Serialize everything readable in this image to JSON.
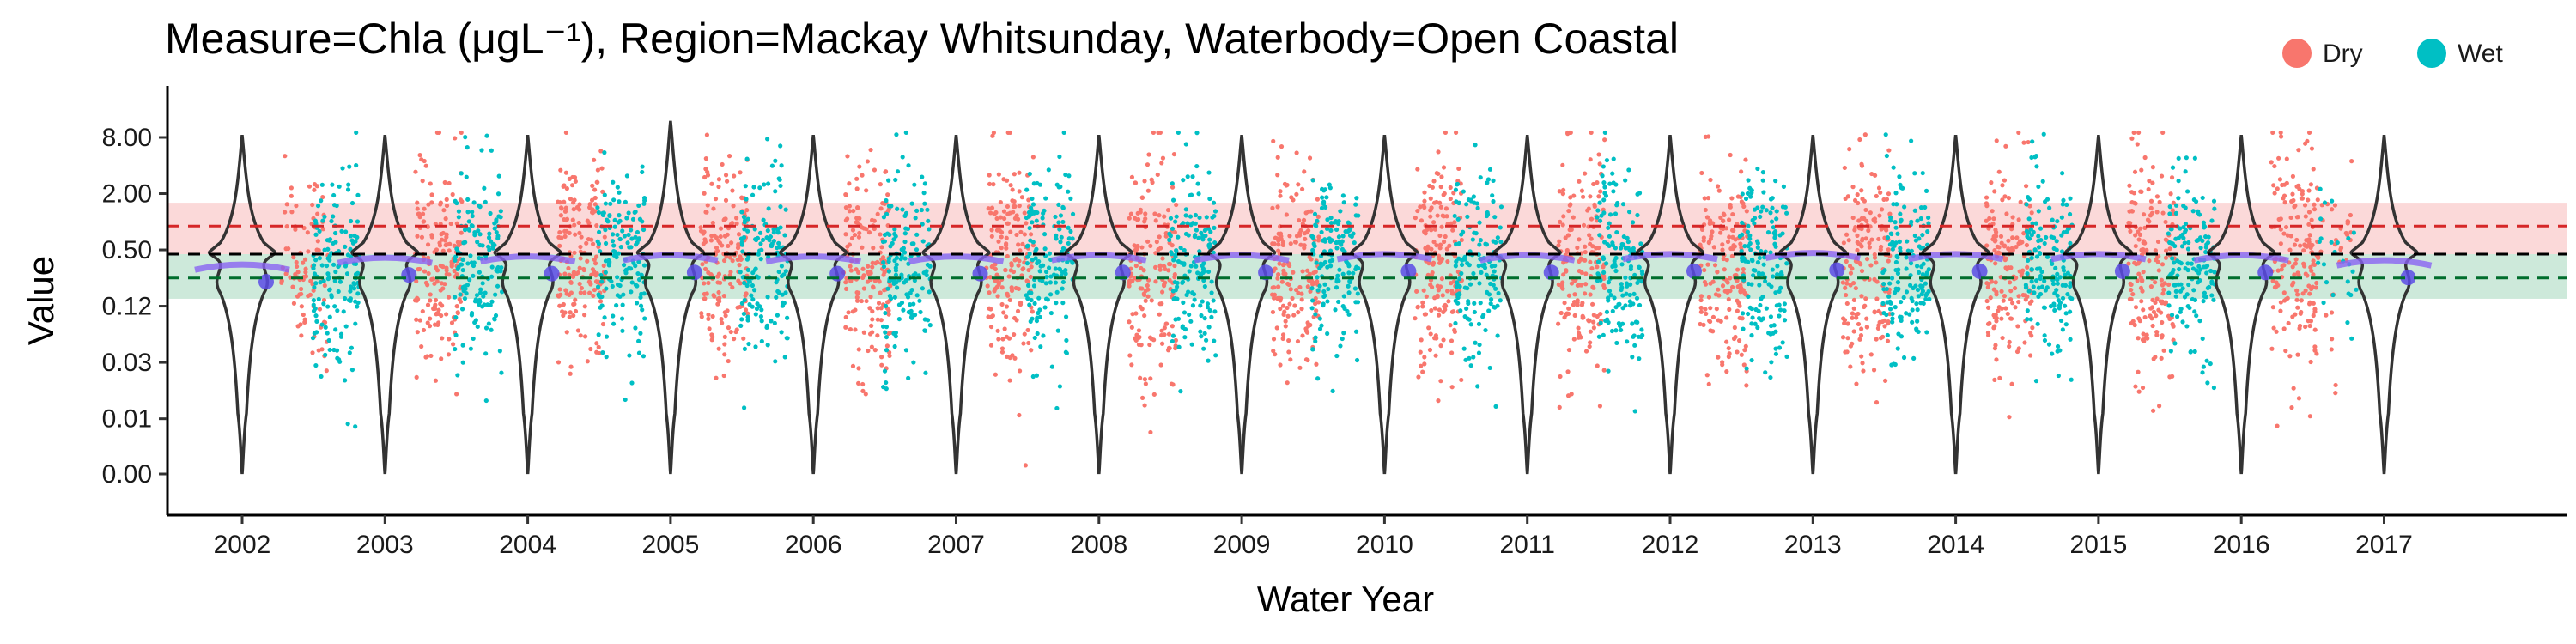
{
  "chart_data": {
    "type": "scatter",
    "title": "Measure=Chla (μgL⁻¹), Region=Mackay Whitsunday, Waterbody=Open Coastal",
    "xlabel": "Water Year",
    "ylabel": "Value",
    "y_scale": "log",
    "categories": [
      "2002",
      "2003",
      "2004",
      "2005",
      "2006",
      "2007",
      "2008",
      "2009",
      "2010",
      "2011",
      "2012",
      "2013",
      "2014",
      "2015",
      "2016",
      "2017"
    ],
    "y_tick_labels": [
      "8.00",
      "2.00",
      "0.50",
      "0.12",
      "0.03",
      "0.01",
      "0.00"
    ],
    "y_tick_values": [
      8.0,
      2.0,
      0.5,
      0.125,
      0.03125,
      0.0078,
      0.002
    ],
    "legend": {
      "position": "top-right",
      "entries": [
        {
          "name": "Dry",
          "color": "#F8766D"
        },
        {
          "name": "Wet",
          "color": "#00BFC4"
        }
      ]
    },
    "reference_lines": [
      {
        "value": 0.9,
        "color": "#D62728",
        "style": "dashed"
      },
      {
        "value": 0.45,
        "color": "#000000",
        "style": "dashed"
      },
      {
        "value": 0.25,
        "color": "#006D2C",
        "style": "dashed"
      }
    ],
    "bands": [
      {
        "from": 0.45,
        "to": 1.6,
        "color": "#F8B4B4"
      },
      {
        "from": 0.15,
        "to": 0.45,
        "color": "#9BD3B5"
      }
    ],
    "series": [
      {
        "name": "Dry",
        "color": "#F8766D"
      },
      {
        "name": "Wet",
        "color": "#00BFC4"
      }
    ],
    "annual_medians": [
      0.27,
      0.32,
      0.33,
      0.34,
      0.33,
      0.33,
      0.34,
      0.34,
      0.35,
      0.34,
      0.35,
      0.36,
      0.35,
      0.35,
      0.34,
      0.3
    ],
    "grid": false
  }
}
